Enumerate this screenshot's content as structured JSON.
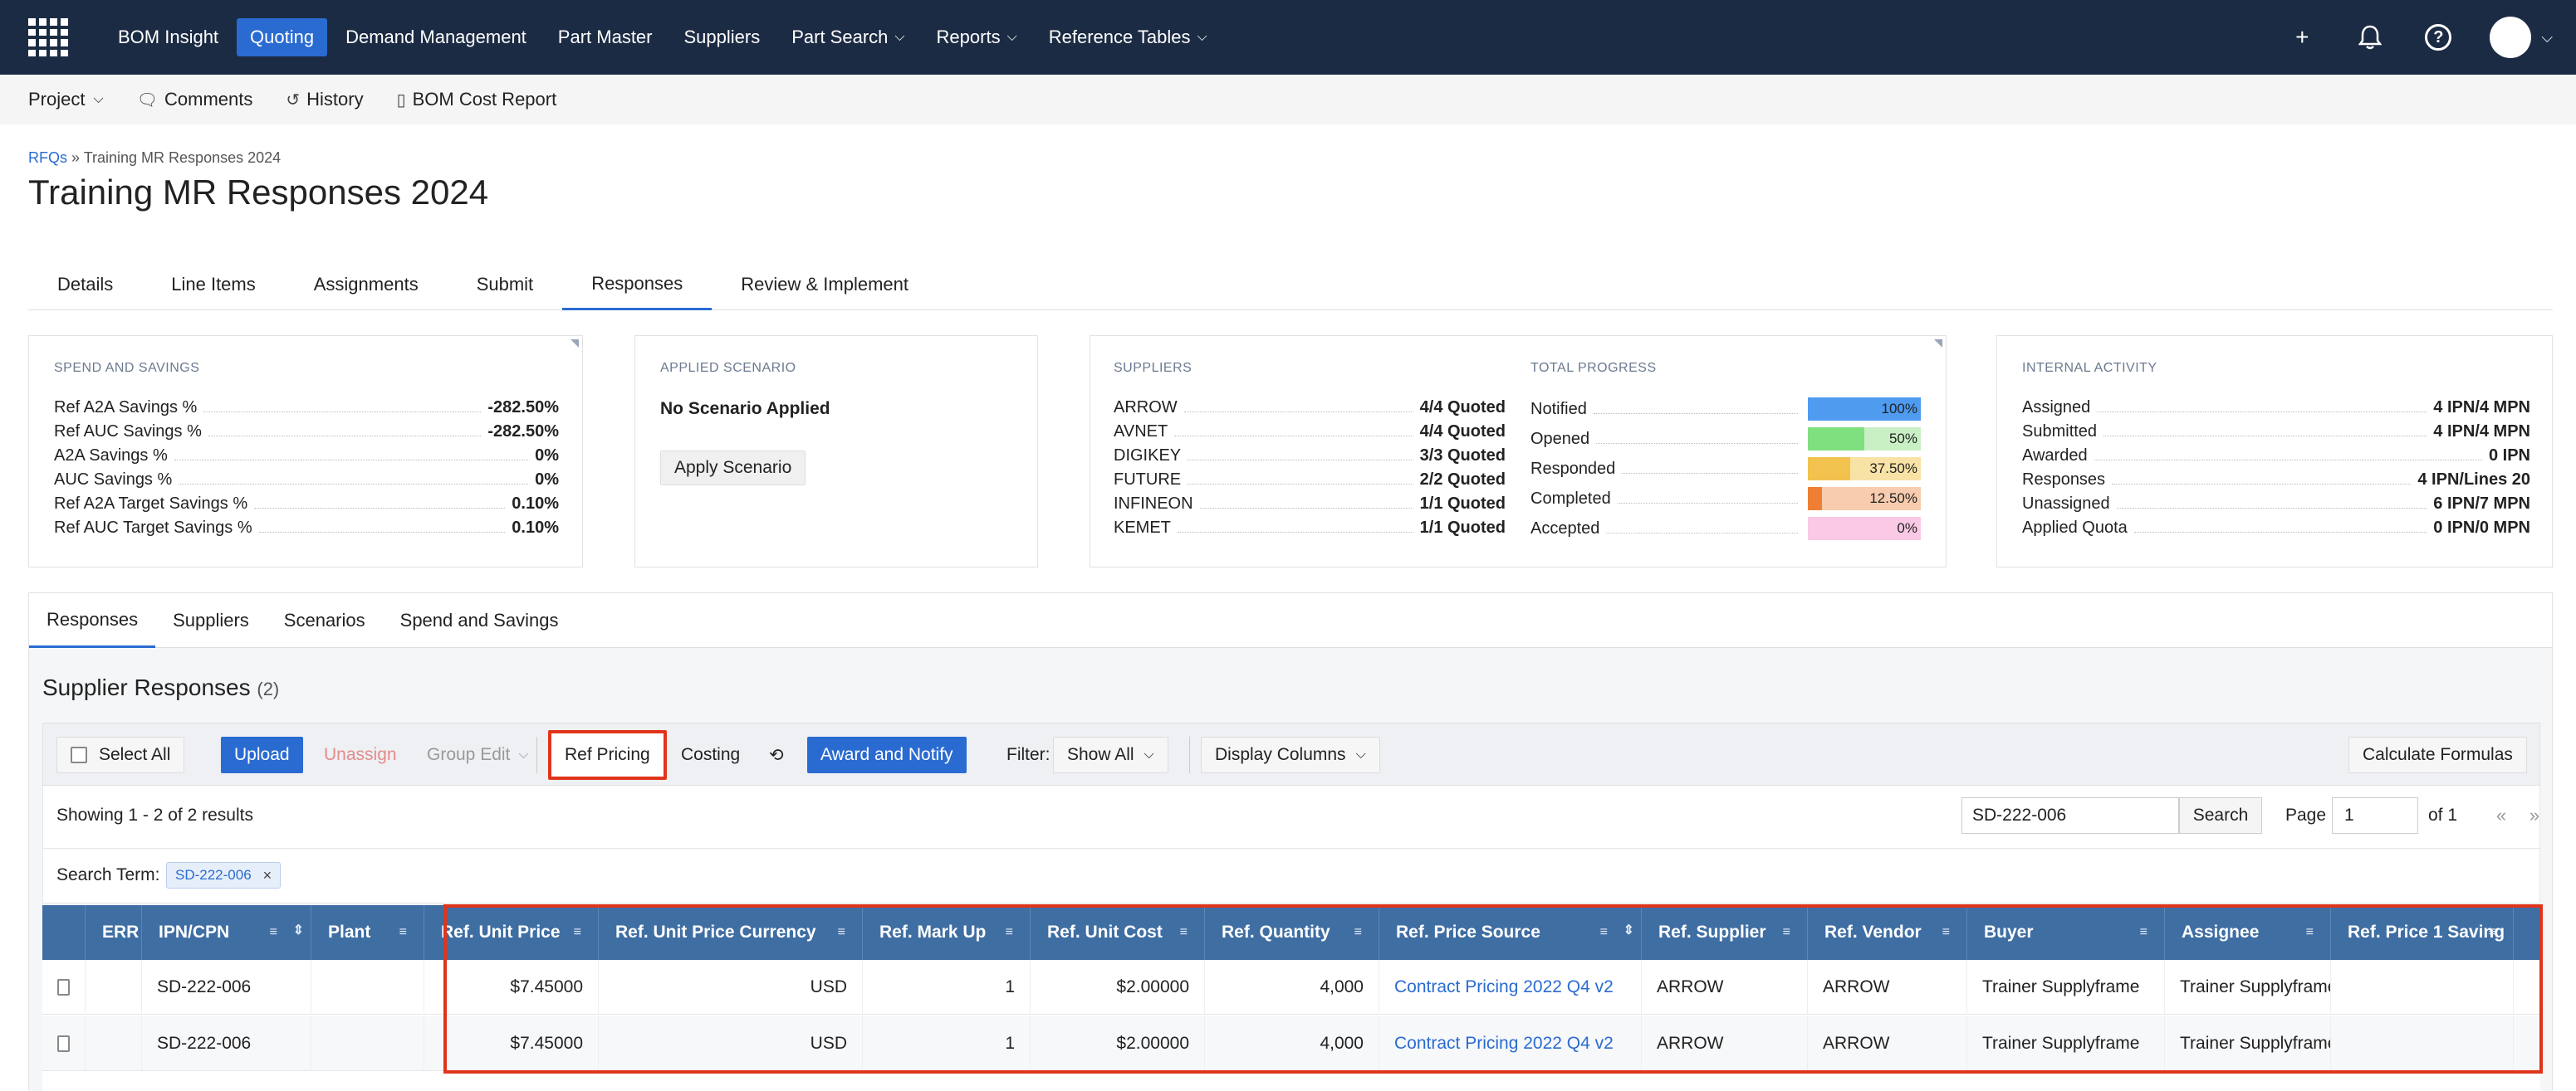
{
  "nav": {
    "items": [
      {
        "label": "BOM Insight",
        "active": false,
        "dropdown": false
      },
      {
        "label": "Quoting",
        "active": true,
        "dropdown": false
      },
      {
        "label": "Demand Management",
        "active": false,
        "dropdown": false
      },
      {
        "label": "Part Master",
        "active": false,
        "dropdown": false
      },
      {
        "label": "Suppliers",
        "active": false,
        "dropdown": false
      },
      {
        "label": "Part Search",
        "active": false,
        "dropdown": true
      },
      {
        "label": "Reports",
        "active": false,
        "dropdown": true
      },
      {
        "label": "Reference Tables",
        "active": false,
        "dropdown": true
      }
    ],
    "icons": [
      "plus-icon",
      "bell-icon",
      "help-icon"
    ]
  },
  "subnav": {
    "project": "Project",
    "comments": "Comments",
    "history": "History",
    "bom_cost_report": "BOM Cost Report"
  },
  "breadcrumb": {
    "root": "RFQs",
    "sep": " » ",
    "current": "Training MR Responses 2024"
  },
  "page_title": "Training MR Responses 2024",
  "main_tabs": [
    "Details",
    "Line Items",
    "Assignments",
    "Submit",
    "Responses",
    "Review & Implement"
  ],
  "spend": {
    "title": "Spend and Savings",
    "rows": [
      {
        "k": "Ref A2A Savings %",
        "v": "-282.50%"
      },
      {
        "k": "Ref AUC Savings %",
        "v": "-282.50%"
      },
      {
        "k": "A2A Savings %",
        "v": "0%"
      },
      {
        "k": "AUC Savings %",
        "v": "0%"
      },
      {
        "k": "Ref A2A Target Savings %",
        "v": "0.10%"
      },
      {
        "k": "Ref AUC Target Savings %",
        "v": "0.10%"
      }
    ]
  },
  "scenario": {
    "title": "Applied Scenario",
    "status": "No Scenario Applied",
    "button": "Apply Scenario"
  },
  "suppliers": {
    "title": "Suppliers",
    "rows": [
      {
        "k": "ARROW",
        "v": "4/4 Quoted"
      },
      {
        "k": "AVNET",
        "v": "4/4 Quoted"
      },
      {
        "k": "DIGIKEY",
        "v": "3/3 Quoted"
      },
      {
        "k": "FUTURE",
        "v": "2/2 Quoted"
      },
      {
        "k": "INFINEON",
        "v": "1/1 Quoted"
      },
      {
        "k": "KEMET",
        "v": "1/1 Quoted"
      }
    ]
  },
  "progress": {
    "title": "Total Progress",
    "rows": [
      {
        "k": "Notified",
        "v": "100%",
        "pct": 100,
        "color": "#4e9bf0",
        "bg": "#4e9bf0"
      },
      {
        "k": "Opened",
        "v": "50%",
        "pct": 50,
        "color": "#7ee07e",
        "bg": "#c9f0c4"
      },
      {
        "k": "Responded",
        "v": "37.50%",
        "pct": 37.5,
        "color": "#f2c24f",
        "bg": "#f8e2a6"
      },
      {
        "k": "Completed",
        "v": "12.50%",
        "pct": 12.5,
        "color": "#ee7f34",
        "bg": "#f8ccae"
      },
      {
        "k": "Accepted",
        "v": "0%",
        "pct": 0,
        "color": "#f69ad0",
        "bg": "#fac9e6"
      }
    ]
  },
  "internal": {
    "title": "Internal Activity",
    "rows": [
      {
        "k": "Assigned",
        "v": "4 IPN/4 MPN"
      },
      {
        "k": "Submitted",
        "v": "4 IPN/4 MPN"
      },
      {
        "k": "Awarded",
        "v": "0 IPN"
      },
      {
        "k": "Responses",
        "v": "4 IPN/Lines 20"
      },
      {
        "k": "Unassigned",
        "v": "6 IPN/7 MPN"
      },
      {
        "k": "Applied Quota",
        "v": "0 IPN/0 MPN"
      }
    ]
  },
  "inner_tabs": [
    "Responses",
    "Suppliers",
    "Scenarios",
    "Spend and Savings"
  ],
  "section": {
    "title": "Supplier Responses",
    "count": "(2)"
  },
  "toolbar": {
    "select_all": "Select All",
    "upload": "Upload",
    "unassign": "Unassign",
    "group_edit": "Group Edit",
    "ref_pricing": "Ref Pricing",
    "costing": "Costing",
    "award": "Award and Notify",
    "filter_label": "Filter:",
    "filter_value": "Show All",
    "display_columns": "Display Columns",
    "calc": "Calculate Formulas"
  },
  "results": {
    "showing": "Showing 1 - 2 of 2 results",
    "search_value": "SD-222-006",
    "search_btn": "Search",
    "page_label": "Page",
    "page_value": "1",
    "of_label": "of 1",
    "first": "«",
    "last": "»"
  },
  "term": {
    "label": "Search Term:",
    "chip": "SD-222-006",
    "remove": "×"
  },
  "table": {
    "headers": [
      "ERR",
      "IPN/CPN",
      "Plant",
      "Ref. Unit Price",
      "Ref. Unit Price Currency",
      "Ref. Mark Up",
      "Ref. Unit Cost",
      "Ref. Quantity",
      "Ref. Price Source",
      "Ref. Supplier",
      "Ref. Vendor",
      "Buyer",
      "Assignee",
      "Ref. Price 1 Saving"
    ],
    "rows": [
      [
        "",
        "SD-222-006",
        "",
        "$7.45000",
        "USD",
        "1",
        "$2.00000",
        "4,000",
        "Contract Pricing 2022 Q4 v2",
        "ARROW",
        "ARROW",
        "Trainer Supplyframe",
        "Trainer Supplyframe",
        ""
      ],
      [
        "",
        "SD-222-006",
        "",
        "$7.45000",
        "USD",
        "1",
        "$2.00000",
        "4,000",
        "Contract Pricing 2022 Q4 v2",
        "ARROW",
        "ARROW",
        "Trainer Supplyframe",
        "Trainer Supplyframe",
        ""
      ]
    ]
  }
}
